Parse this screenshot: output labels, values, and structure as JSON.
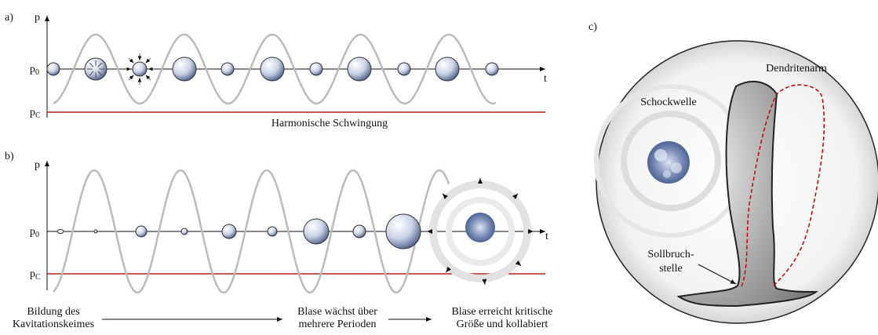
{
  "panel_a": {
    "label": "a)",
    "y_axis": "p",
    "x_axis": "t",
    "p0": {
      "symbol": "p",
      "subscript": "0"
    },
    "pc": {
      "symbol": "p",
      "subscript": "C"
    },
    "caption": "Harmonische Schwingung"
  },
  "panel_b": {
    "label": "b)",
    "y_axis": "p",
    "x_axis": "t",
    "p0": {
      "symbol": "p",
      "subscript": "0"
    },
    "pc": {
      "symbol": "p",
      "subscript": "C"
    },
    "stages": [
      {
        "lines": [
          "Bildung des",
          "Kavitationskeimes"
        ]
      },
      {
        "lines": [
          "Blase wächst über",
          "mehrere Perioden"
        ]
      },
      {
        "lines": [
          "Blase erreicht kritische",
          "Größe und kollabiert"
        ]
      }
    ]
  },
  "panel_c": {
    "label": "c)",
    "dendrite": "Dendritenarm",
    "shockwave": "Schockwelle",
    "breaking_point": {
      "lines": [
        "Sollbruch-",
        "stelle"
      ]
    }
  }
}
